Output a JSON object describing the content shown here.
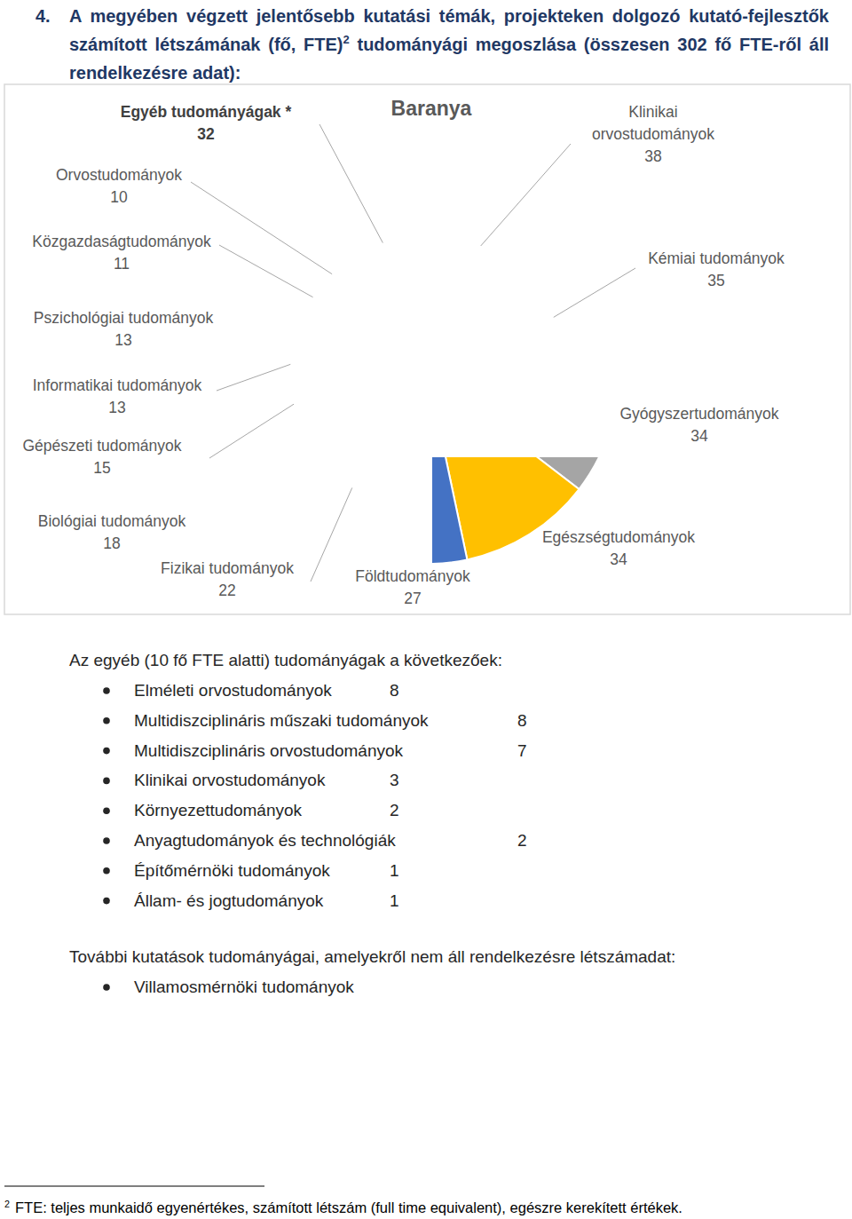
{
  "header": {
    "number": "4.",
    "text_before": "A megyében végzett jelentősebb kutatási témák, projekteken dolgozó kutató-fejlesztők számított létszámának (fő, FTE)",
    "footnote_ref": "2",
    "text_after": " tudományági megoszlása (összesen 302 fő FTE-ről áll rendelkezésre adat):"
  },
  "chart_data": {
    "type": "donut",
    "title": "Baranya",
    "categories": [
      "Klinikai orvostudományok",
      "Kémiai tudományok",
      "Gyógyszertudományok",
      "Egészségtudományok",
      "Földtudományok",
      "Fizikai tudományok",
      "Biológiai tudományok",
      "Gépészeti tudományok",
      "Informatikai tudományok",
      "Pszichológiai tudományok",
      "Közgazdaságtudományok",
      "Orvostudományok",
      "Egyéb tudományágak *"
    ],
    "values": [
      38,
      35,
      34,
      34,
      27,
      22,
      18,
      15,
      13,
      13,
      11,
      10,
      32
    ],
    "colors": [
      "#5b9bd5",
      "#ed7d31",
      "#a5a5a5",
      "#ffc000",
      "#4472c4",
      "#70ad47",
      "#255e91",
      "#9e480e",
      "#636363",
      "#997300",
      "#264478",
      "#43682b",
      "#7cafdd"
    ],
    "data_labels": true
  },
  "other_fields": {
    "intro": "Az egyéb (10 fő FTE alatti) tudományágak a következőek:",
    "items": [
      {
        "name": "Elméleti orvostudományok",
        "value": 8
      },
      {
        "name": "Multidiszciplináris műszaki tudományok",
        "value": 8
      },
      {
        "name": "Multidiszciplináris orvostudományok",
        "value": 7
      },
      {
        "name": "Klinikai orvostudományok",
        "value": 3
      },
      {
        "name": "Környezettudományok",
        "value": 2
      },
      {
        "name": "Anyagtudományok és technológiák",
        "value": 2
      },
      {
        "name": "Építőmérnöki tudományok",
        "value": 1
      },
      {
        "name": "Állam- és jogtudományok",
        "value": 1
      }
    ]
  },
  "further_fields": {
    "intro": "További kutatások tudományágai, amelyekről nem áll rendelkezésre létszámadat:",
    "items": [
      "Villamosmérnöki tudományok"
    ]
  },
  "footnote": {
    "mark": "2",
    "text": "FTE: teljes munkaidő egyenértékes, számított létszám (full time equivalent), egészre kerekített értékek."
  }
}
